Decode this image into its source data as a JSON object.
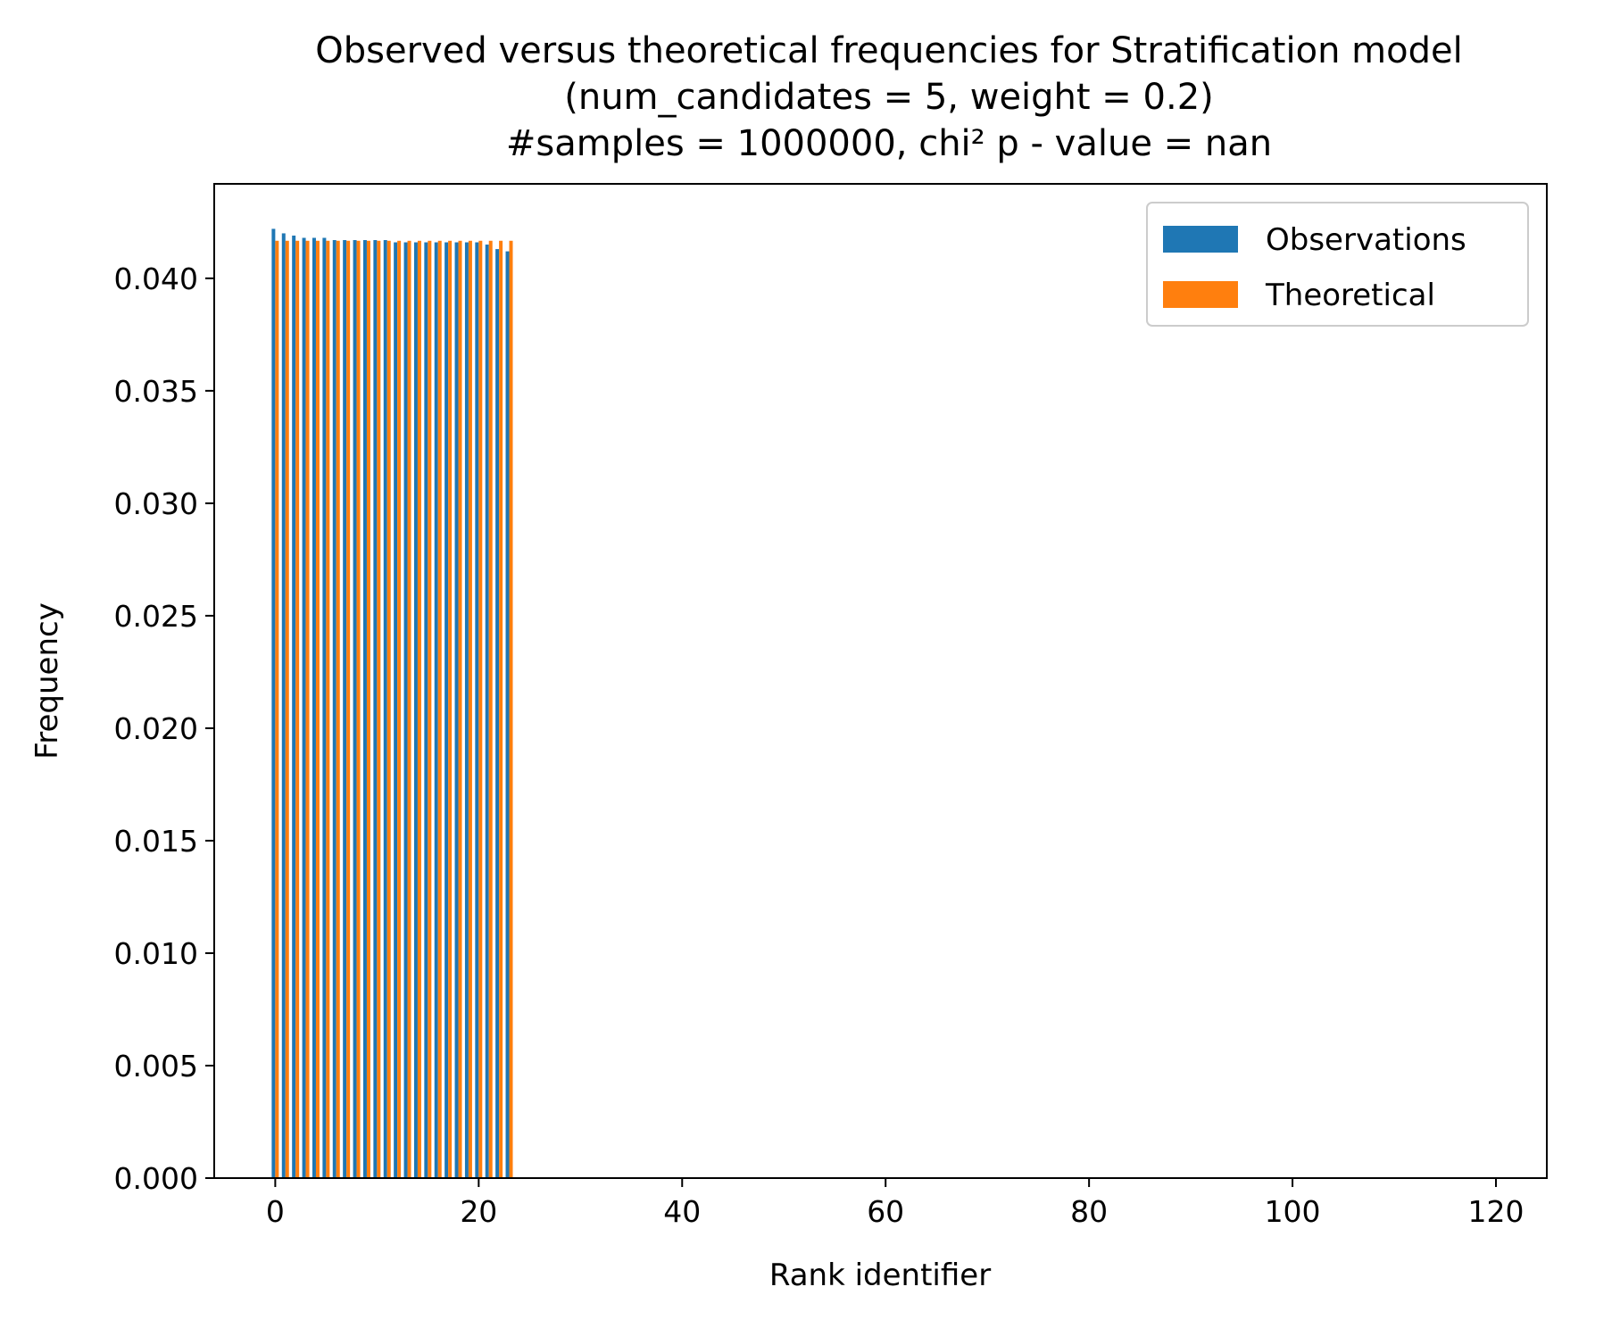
{
  "chart_data": {
    "type": "bar",
    "title": [
      "Observed versus theoretical frequencies for Stratification model",
      "(num_candidates = 5, weight = 0.2)",
      "#samples = 1000000, chi² p - value = nan"
    ],
    "xlabel": "Rank identifier",
    "ylabel": "Frequency",
    "xlim": [
      -6,
      125
    ],
    "ylim": [
      0,
      0.0442
    ],
    "xticks": [
      0,
      20,
      40,
      60,
      80,
      100,
      120
    ],
    "xtick_labels": [
      "0",
      "20",
      "40",
      "60",
      "80",
      "100",
      "120"
    ],
    "yticks": [
      0,
      0.005,
      0.01,
      0.015,
      0.02,
      0.025,
      0.03,
      0.035,
      0.04
    ],
    "ytick_labels": [
      "0.000",
      "0.005",
      "0.010",
      "0.015",
      "0.020",
      "0.025",
      "0.030",
      "0.035",
      "0.040"
    ],
    "grid": false,
    "legend_position": "top-right",
    "bar_width": 0.35,
    "x": [
      0,
      1,
      2,
      3,
      4,
      5,
      6,
      7,
      8,
      9,
      10,
      11,
      12,
      13,
      14,
      15,
      16,
      17,
      18,
      19,
      20,
      21,
      22,
      23
    ],
    "series": [
      {
        "name": "Observations",
        "color": "#1f77b4",
        "values": [
          0.0422,
          0.042,
          0.0419,
          0.0418,
          0.0418,
          0.0418,
          0.0417,
          0.0417,
          0.0417,
          0.0417,
          0.0417,
          0.0417,
          0.0416,
          0.0416,
          0.0416,
          0.0416,
          0.0416,
          0.0416,
          0.0416,
          0.0416,
          0.0416,
          0.0415,
          0.0413,
          0.0412
        ]
      },
      {
        "name": "Theoretical",
        "color": "#ff7f0e",
        "values": [
          0.04167,
          0.04167,
          0.04167,
          0.04167,
          0.04167,
          0.04167,
          0.04167,
          0.04167,
          0.04167,
          0.04167,
          0.04167,
          0.04167,
          0.04167,
          0.04167,
          0.04167,
          0.04167,
          0.04167,
          0.04167,
          0.04167,
          0.04167,
          0.04167,
          0.04167,
          0.04167,
          0.04167
        ]
      }
    ]
  }
}
